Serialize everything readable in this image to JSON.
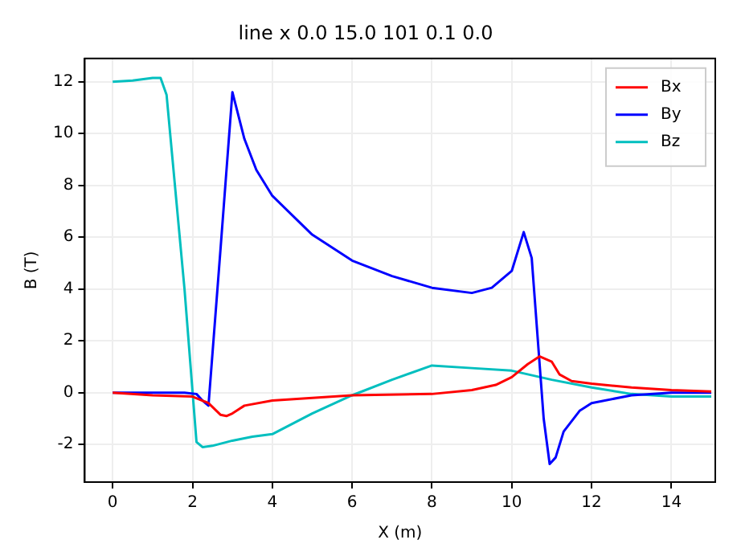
{
  "chart_data": {
    "type": "line",
    "title": "line x 0.0 15.0 101 0.1 0.0",
    "xlabel": "X (m)",
    "ylabel": "B (T)",
    "xlim": [
      -0.7,
      15.1
    ],
    "ylim": [
      -3.45,
      12.9
    ],
    "xticks": [
      0,
      2,
      4,
      6,
      8,
      10,
      12,
      14
    ],
    "yticks": [
      -2,
      0,
      2,
      4,
      6,
      8,
      10,
      12
    ],
    "legend": "top right",
    "grid": true,
    "marker": "none",
    "line_style": "solid",
    "series": [
      {
        "name": "Bx",
        "color": "#ff0000",
        "x": [
          0,
          1,
          2,
          2.4,
          2.7,
          2.85,
          3,
          3.3,
          4,
          5,
          6,
          8,
          9,
          9.6,
          10,
          10.4,
          10.7,
          11,
          11.2,
          11.5,
          12,
          13,
          14,
          15
        ],
        "values": [
          0,
          -0.1,
          -0.15,
          -0.4,
          -0.85,
          -0.9,
          -0.8,
          -0.5,
          -0.3,
          -0.2,
          -0.1,
          -0.05,
          0.1,
          0.3,
          0.6,
          1.1,
          1.4,
          1.2,
          0.7,
          0.45,
          0.35,
          0.2,
          0.1,
          0.05
        ]
      },
      {
        "name": "By",
        "color": "#0000ff",
        "x": [
          0,
          1,
          1.8,
          2.1,
          2.25,
          2.4,
          2.7,
          3,
          3.3,
          3.6,
          4,
          5,
          6,
          7,
          8,
          9,
          9.5,
          10,
          10.3,
          10.5,
          10.8,
          10.95,
          11.1,
          11.3,
          11.7,
          12,
          13,
          14,
          15
        ],
        "values": [
          0,
          0,
          0,
          -0.05,
          -0.3,
          -0.5,
          5.5,
          11.6,
          9.8,
          8.6,
          7.6,
          6.1,
          5.1,
          4.5,
          4.05,
          3.85,
          4.05,
          4.7,
          6.2,
          5.2,
          -1,
          -2.75,
          -2.5,
          -1.5,
          -0.7,
          -0.4,
          -0.1,
          0,
          0
        ]
      },
      {
        "name": "Bz",
        "color": "#00bfbf",
        "x": [
          0,
          0.5,
          1,
          1.2,
          1.35,
          1.5,
          1.8,
          2.1,
          2.25,
          2.5,
          3,
          3.5,
          4,
          5,
          6,
          7,
          8,
          9,
          10,
          11,
          12,
          13,
          14,
          15
        ],
        "values": [
          12,
          12.05,
          12.15,
          12.15,
          11.5,
          9,
          4,
          -1.9,
          -2.1,
          -2.05,
          -1.85,
          -1.7,
          -1.6,
          -0.8,
          -0.1,
          0.5,
          1.05,
          0.95,
          0.85,
          0.5,
          0.2,
          -0.05,
          -0.15,
          -0.15
        ]
      }
    ]
  }
}
